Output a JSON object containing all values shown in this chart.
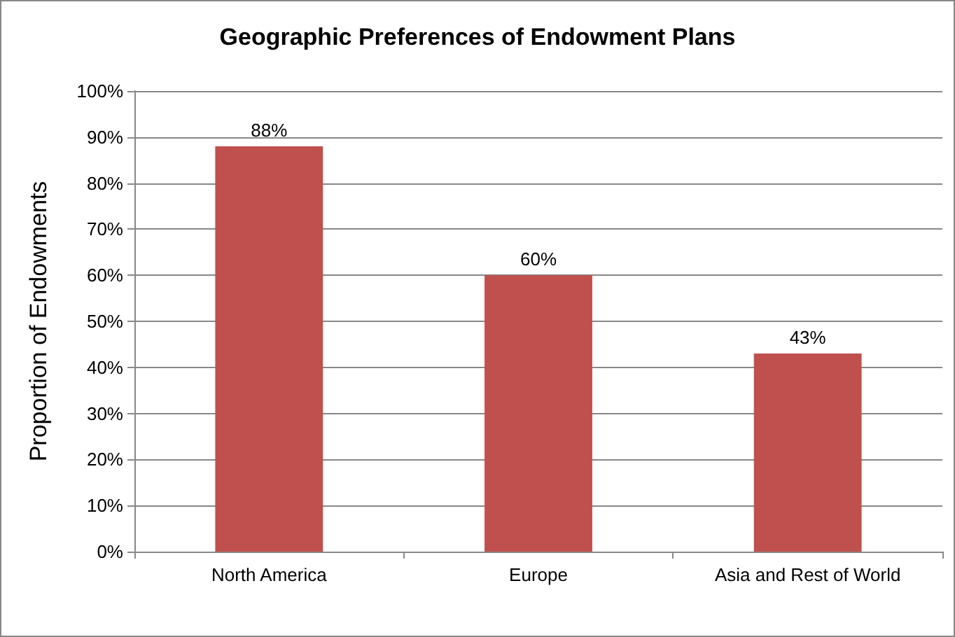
{
  "chart_data": {
    "type": "bar",
    "title": "Geographic Preferences of Endowment Plans",
    "ylabel": "Proportion of Endowments",
    "categories": [
      "North America",
      "Europe",
      "Asia and Rest of World"
    ],
    "values": [
      88,
      60,
      43
    ],
    "color": "#c0504d",
    "value_labels": [
      "88%",
      "60%",
      "43%"
    ],
    "ylim": [
      0,
      100
    ],
    "yticks": [
      {
        "value": 0,
        "label": "0%"
      },
      {
        "value": 10,
        "label": "10%"
      },
      {
        "value": 20,
        "label": "20%"
      },
      {
        "value": 30,
        "label": "30%"
      },
      {
        "value": 40,
        "label": "40%"
      },
      {
        "value": 50,
        "label": "50%"
      },
      {
        "value": 60,
        "label": "60%"
      },
      {
        "value": 70,
        "label": "70%"
      },
      {
        "value": 80,
        "label": "80%"
      },
      {
        "value": 90,
        "label": "90%"
      },
      {
        "value": 100,
        "label": "100%"
      }
    ],
    "grid": "y"
  }
}
